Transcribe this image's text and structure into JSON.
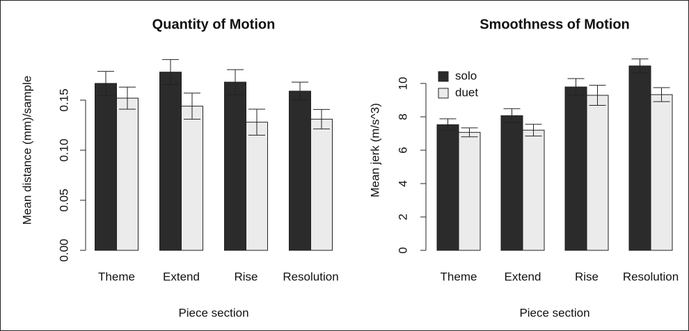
{
  "chart_data": [
    {
      "type": "bar",
      "title": "Quantity of Motion",
      "x_label": "Piece section",
      "y_label": "Mean distance (mm)/sample",
      "categories": [
        "Theme",
        "Extend",
        "Rise",
        "Resolution"
      ],
      "series": [
        {
          "color": "#2b2b2b",
          "values": [
            0.1667,
            0.178,
            0.168,
            0.159
          ],
          "errors": [
            0.012,
            0.0125,
            0.0125,
            0.009
          ]
        },
        {
          "color": "#ebebeb",
          "values": [
            0.152,
            0.144,
            0.128,
            0.131
          ],
          "errors": [
            0.011,
            0.013,
            0.013,
            0.0097
          ]
        }
      ],
      "ylim": [
        0,
        0.2
      ],
      "yticks": [
        {
          "value": 0,
          "label": "0.00"
        },
        0.05,
        {
          "value": 0.1,
          "label": "0.10"
        },
        0.15
      ]
    },
    {
      "type": "bar",
      "title": "Smoothness of Motion",
      "x_label": "Piece section",
      "y_label": "Mean jerk (m/s^3)",
      "categories": [
        "Theme",
        "Extend",
        "Rise",
        "Resolution"
      ],
      "series": [
        {
          "name": "solo",
          "color": "#2b2b2b",
          "values": [
            7.53,
            8.07,
            9.79,
            11.05
          ],
          "errors": [
            0.35,
            0.42,
            0.5,
            0.42
          ]
        },
        {
          "name": "duet",
          "color": "#ebebeb",
          "values": [
            7.07,
            7.2,
            9.29,
            9.33
          ],
          "errors": [
            0.27,
            0.35,
            0.6,
            0.42
          ]
        }
      ],
      "ylim": [
        0,
        12
      ],
      "yticks": [
        0,
        2,
        4,
        6,
        8,
        10
      ],
      "legend": "top-left"
    }
  ]
}
